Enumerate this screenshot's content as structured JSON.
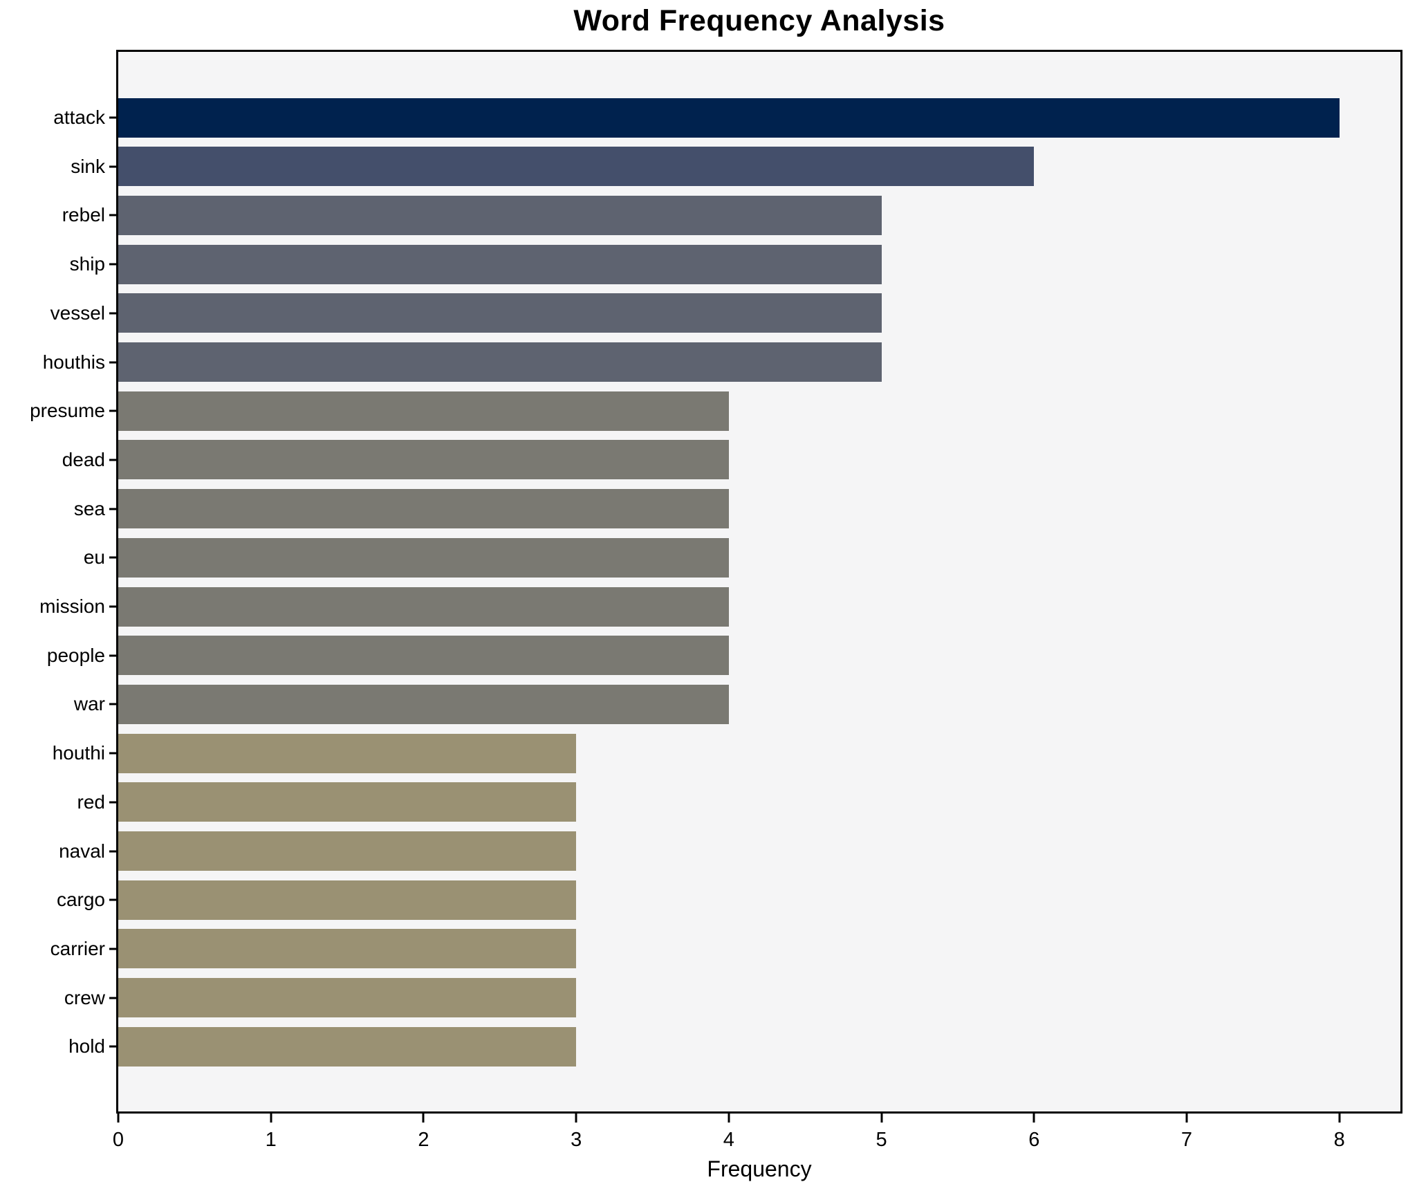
{
  "chart_data": {
    "type": "bar",
    "orientation": "horizontal",
    "title": "Word Frequency Analysis",
    "xlabel": "Frequency",
    "ylabel": "",
    "categories": [
      "attack",
      "sink",
      "rebel",
      "ship",
      "vessel",
      "houthis",
      "presume",
      "dead",
      "sea",
      "eu",
      "mission",
      "people",
      "war",
      "houthi",
      "red",
      "naval",
      "cargo",
      "carrier",
      "crew",
      "hold"
    ],
    "values": [
      8,
      6,
      5,
      5,
      5,
      5,
      4,
      4,
      4,
      4,
      4,
      4,
      4,
      3,
      3,
      3,
      3,
      3,
      3,
      3
    ],
    "bar_colors": [
      "#00224e",
      "#444f6b",
      "#5e6370",
      "#5e6370",
      "#5e6370",
      "#5e6370",
      "#7a7972",
      "#7a7972",
      "#7a7972",
      "#7a7972",
      "#7a7972",
      "#7a7972",
      "#7a7972",
      "#9a9173",
      "#9a9173",
      "#9a9173",
      "#9a9173",
      "#9a9173",
      "#9a9173",
      "#9a9173"
    ],
    "x_ticks": [
      0,
      1,
      2,
      3,
      4,
      5,
      6,
      7,
      8
    ],
    "xlim": [
      0,
      8.4
    ],
    "grid": false,
    "legend": null,
    "plot_background": "#f5f5f6",
    "figure_background": "#ffffff",
    "spine_color": "#000000",
    "text_color": "#000000"
  }
}
